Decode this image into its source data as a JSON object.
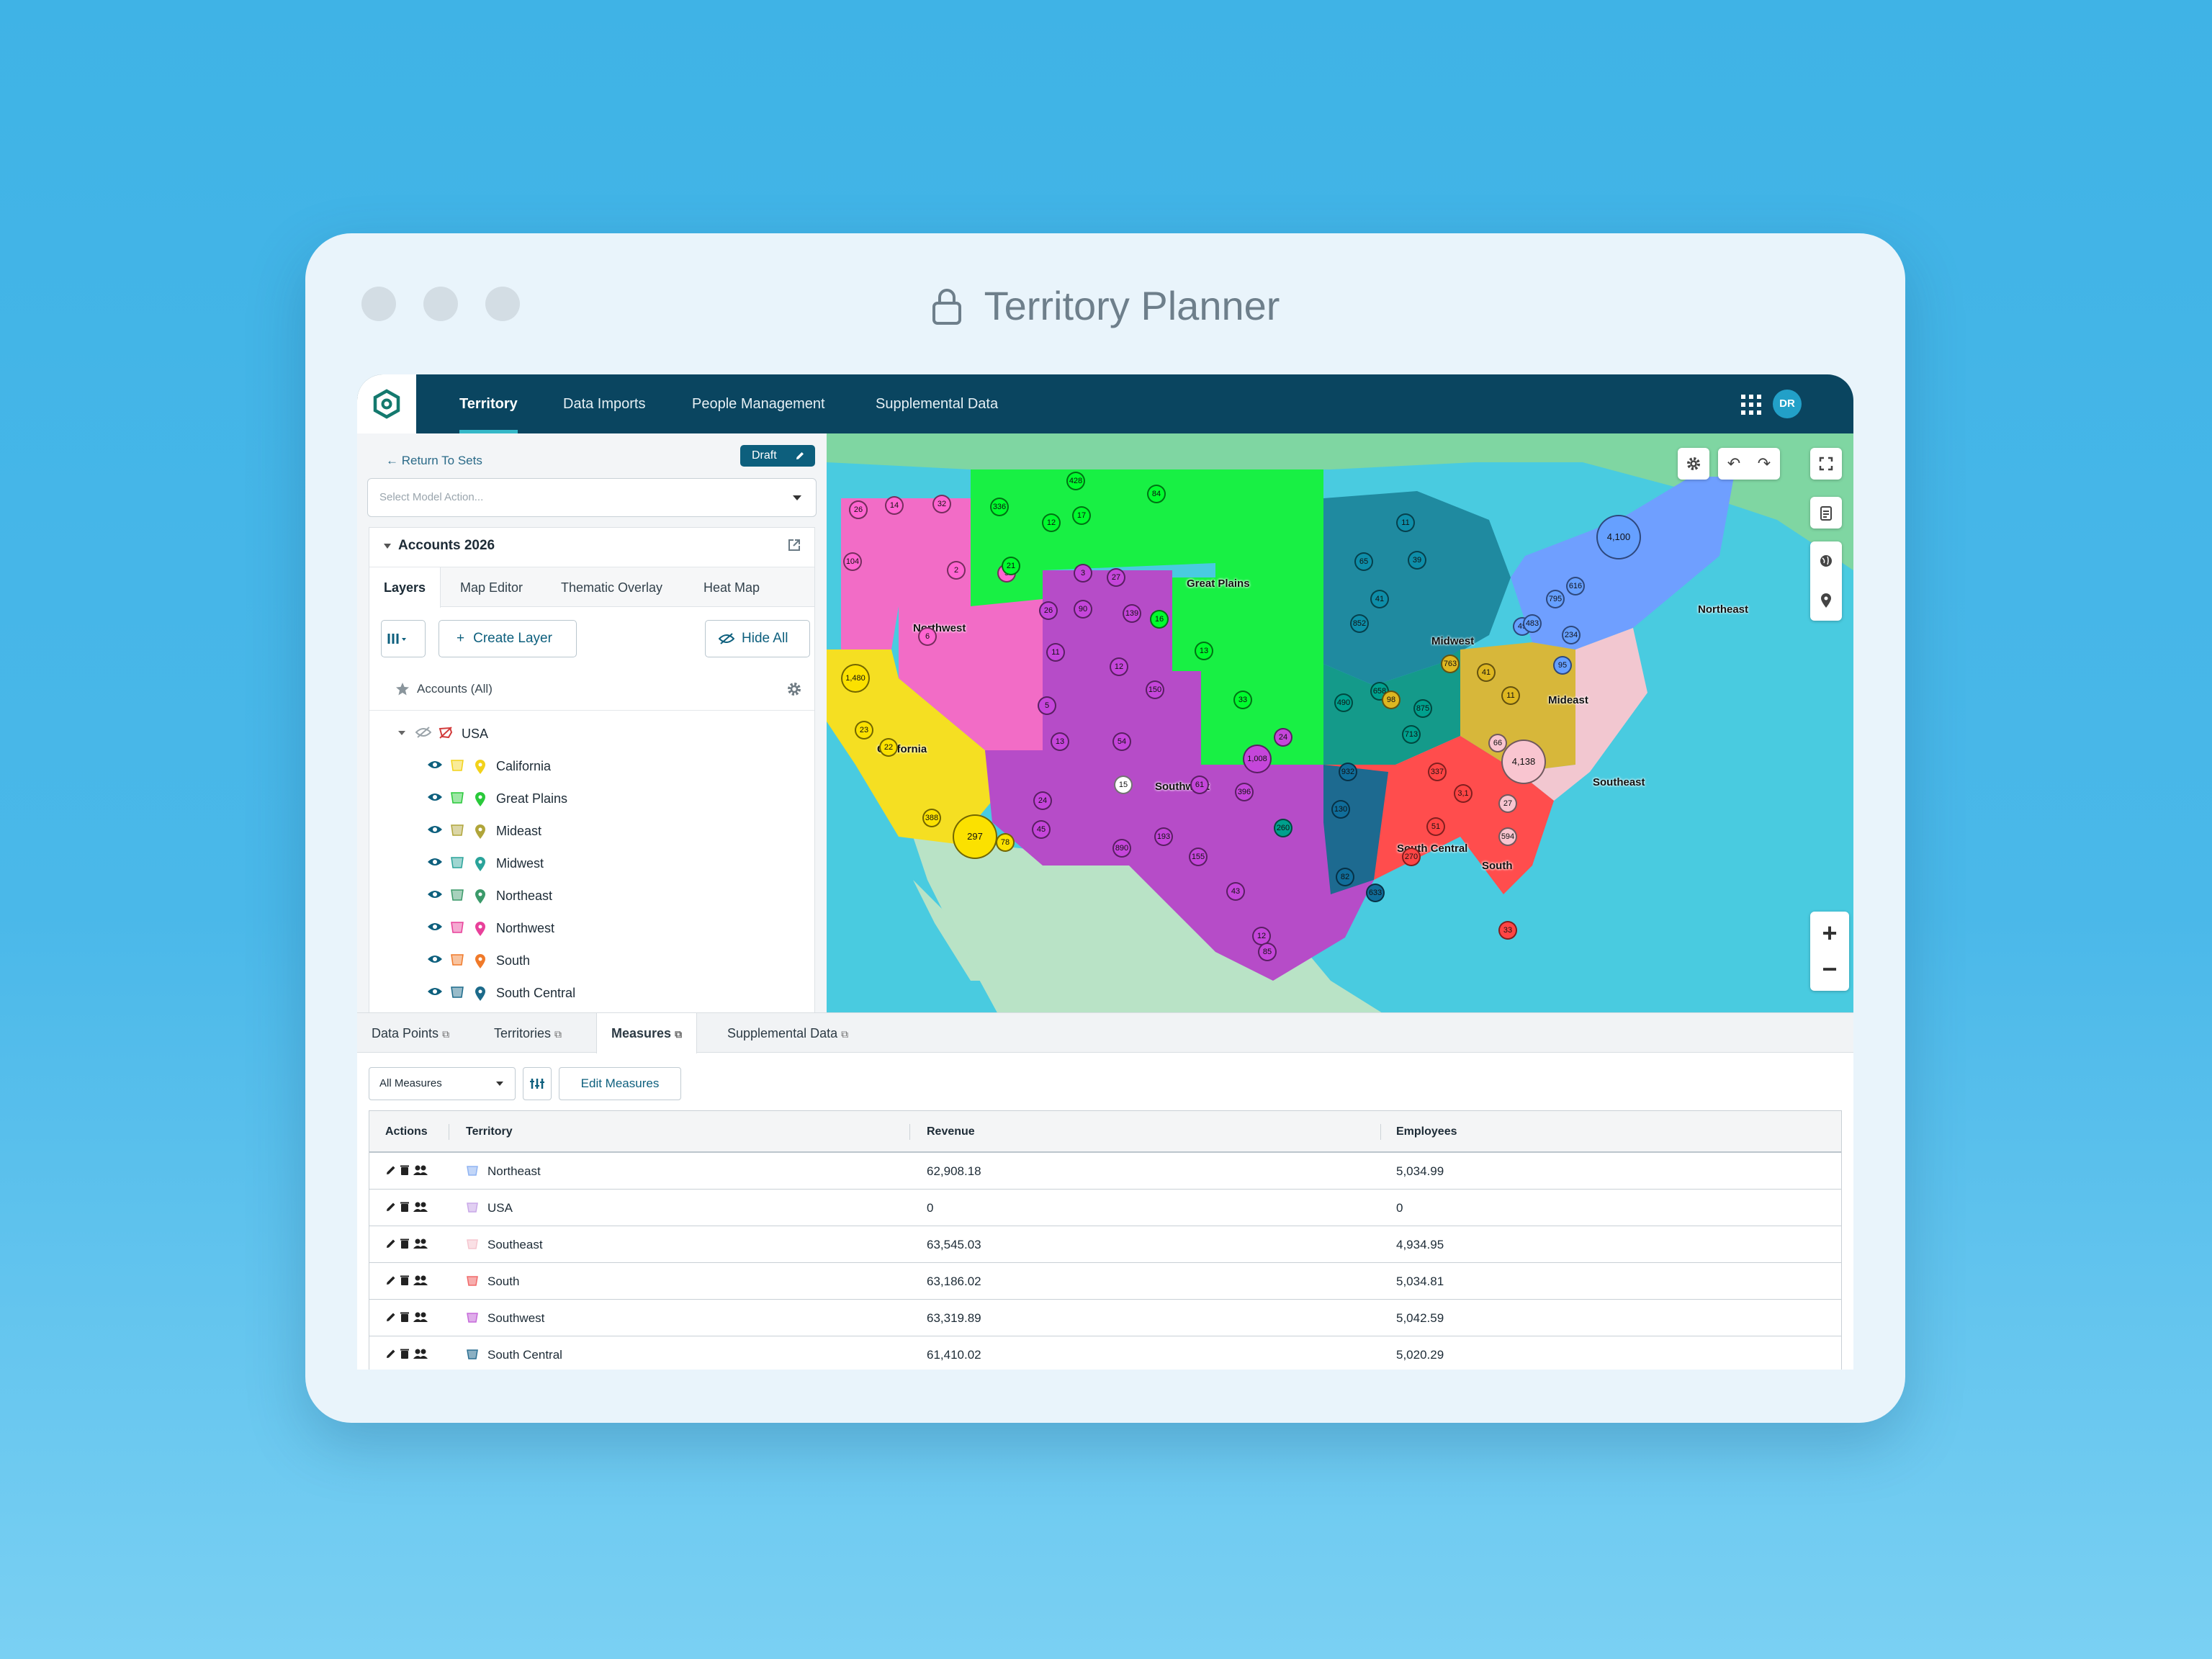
{
  "window": {
    "title": "Territory Planner"
  },
  "nav": {
    "items": [
      "Territory",
      "Data Imports",
      "People Management",
      "Supplemental Data"
    ],
    "active": "Territory",
    "avatar": "DR"
  },
  "left_panel": {
    "return_link": "← Return To Sets",
    "draft_label": "Draft",
    "model_action_placeholder": "Select Model Action...",
    "card_title": "Accounts 2026",
    "tabs": [
      "Layers",
      "Map Editor",
      "Thematic Overlay",
      "Heat Map"
    ],
    "active_tab": "Layers",
    "create_layer": "Create Layer",
    "hide_all": "Hide All",
    "accounts_all": "Accounts (All)",
    "root": "USA",
    "territories": [
      {
        "name": "California",
        "color": "#f2d21a"
      },
      {
        "name": "Great Plains",
        "color": "#29c93a"
      },
      {
        "name": "Mideast",
        "color": "#b0a53a"
      },
      {
        "name": "Midwest",
        "color": "#2aa39a"
      },
      {
        "name": "Northeast",
        "color": "#3b9a6a"
      },
      {
        "name": "Northwest",
        "color": "#e8409a"
      },
      {
        "name": "South",
        "color": "#f07a2a"
      },
      {
        "name": "South Central",
        "color": "#1c6a8a"
      }
    ]
  },
  "map": {
    "region_labels": [
      "Northwest",
      "Great Plains",
      "Midwest",
      "Northeast",
      "California",
      "Southwest",
      "Mideast",
      "Southeast",
      "South Central",
      "South"
    ],
    "cluster_values": [
      "151",
      "32",
      "104",
      "14",
      "5",
      "2",
      "6",
      "3",
      "27",
      "26",
      "11",
      "90",
      "139",
      "12",
      "150",
      "5",
      "13",
      "54",
      "15",
      "61",
      "24",
      "45",
      "890",
      "193",
      "155",
      "43",
      "12",
      "85",
      "388",
      "78",
      "297",
      "23",
      "22",
      "1,480",
      "428",
      "84",
      "17",
      "336",
      "12",
      "21",
      "16",
      "13",
      "33",
      "65",
      "11",
      "39",
      "41",
      "852",
      "658",
      "713",
      "875",
      "490",
      "932",
      "130",
      "82",
      "633",
      "98",
      "763",
      "41",
      "11",
      "66",
      "4,138",
      "27",
      "594",
      "795",
      "616",
      "49",
      "483",
      "234",
      "95",
      "4,100",
      "1,008",
      "24",
      "396",
      "260",
      "337",
      "3,1",
      "51",
      "270",
      "33",
      "26"
    ],
    "zoom_in": "+",
    "zoom_out": "−"
  },
  "bottom": {
    "tabs": [
      "Data Points",
      "Territories",
      "Measures",
      "Supplemental Data"
    ],
    "active_tab": "Measures",
    "measures_select": "All Measures",
    "edit_measures": "Edit Measures",
    "columns": [
      "Actions",
      "Territory",
      "Revenue",
      "Employees"
    ],
    "rows": [
      {
        "territory": "Northeast",
        "revenue": "62,908.18",
        "employees": "5,034.99",
        "color": "#8fb4f2"
      },
      {
        "territory": "USA",
        "revenue": "0",
        "employees": "0",
        "color": "#c9a8e8"
      },
      {
        "territory": "Southeast",
        "revenue": "63,545.03",
        "employees": "4,934.95",
        "color": "#f5c6cf"
      },
      {
        "territory": "South",
        "revenue": "63,186.02",
        "employees": "5,034.81",
        "color": "#f06a6a"
      },
      {
        "territory": "Southwest",
        "revenue": "63,319.89",
        "employees": "5,042.59",
        "color": "#c56ad9"
      },
      {
        "territory": "South Central",
        "revenue": "61,410.02",
        "employees": "5,020.29",
        "color": "#2c6f92"
      }
    ]
  }
}
